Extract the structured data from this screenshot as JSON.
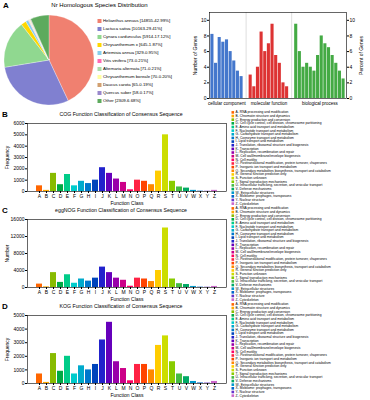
{
  "chart_data": [
    {
      "type": "pie",
      "title": "Nr Homologous Species Distribution",
      "annotations": [
        "A"
      ],
      "categories": [
        "Helianthus annuus [14855-42.99%]",
        "Lactuca sativa [10163-29.41%]",
        "Cynara cardunculus [5914-17.12%]",
        "Chrysanthemum x [645-1.87%]",
        "Artemisia annua [329-0.95%]",
        "Vitis vinifera [73-0.21%]",
        "Alternaria alternata [71-0.21%]",
        "Chrysanthemum boreale [70-0.20%]",
        "Daucus carota [65-0.19%]",
        "Quercus suber [58-0.17%]",
        "Other [2309-6.68%]"
      ],
      "values": [
        42.99,
        29.41,
        17.12,
        1.87,
        0.95,
        0.21,
        0.21,
        0.2,
        0.19,
        0.17,
        6.68
      ],
      "colors": [
        "#F08070",
        "#8080D0",
        "#90D890",
        "#FFD700",
        "#87CEEB",
        "#FF69B4",
        "#AADDAA",
        "#FFFFA0",
        "#D2A070",
        "#9988CC",
        "#5DAA5D"
      ],
      "legend": "right"
    },
    {
      "type": "bar",
      "title": "COG Function Classification of Consensus Sequence",
      "annotations": [
        "B"
      ],
      "xlabel": "Function Class",
      "ylabel": "Frequency",
      "categories": [
        "A",
        "B",
        "C",
        "D",
        "E",
        "F",
        "G",
        "H",
        "I",
        "J",
        "K",
        "L",
        "M",
        "N",
        "O",
        "P",
        "Q",
        "R",
        "S",
        "T",
        "U",
        "V",
        "W",
        "X",
        "Y",
        "Z"
      ],
      "values": [
        500,
        100,
        1600,
        600,
        1500,
        500,
        900,
        700,
        1000,
        2100,
        1600,
        1100,
        800,
        150,
        1000,
        900,
        600,
        1800,
        5000,
        900,
        400,
        300,
        100,
        30,
        20,
        100
      ],
      "colors": [
        "#FF6600",
        "#FFAA00",
        "#88BB00",
        "#00AA44",
        "#00CC88",
        "#00CCCC",
        "#00AACC",
        "#0077CC",
        "#0044BB",
        "#2222CC",
        "#6600BB",
        "#9900AA",
        "#CC0088",
        "#FF0066",
        "#FF2244",
        "#FF4400",
        "#FF8800",
        "#FFCC00",
        "#CCDD00",
        "#88CC00",
        "#44BB44",
        "#00AA66",
        "#0099CC",
        "#0066CC",
        "#6633CC",
        "#CC66CC"
      ],
      "ylim": [
        0,
        6000
      ],
      "yticks": [
        0,
        1000,
        2000,
        3000,
        4000,
        5000,
        6000
      ],
      "grid": false,
      "legend": "right",
      "legend_labels": [
        "A- RNA processing and modification",
        "B- Chromatin structure and dynamics",
        "C- Energy production and conversion",
        "D- Cell cycle control, cell division, chromosome partitioning",
        "E- Amino acid transport and metabolism",
        "F- Nucleotide transport and metabolism",
        "G- Carbohydrate transport and metabolism",
        "H- Coenzyme transport and metabolism",
        "I- Lipid transport and metabolism",
        "J- Translation, ribosomal structure and biogenesis",
        "K- Transcription",
        "L- Replication, recombination and repair",
        "M- Cell wall/membrane/envelope biogenesis",
        "N- Cell motility",
        "O- Posttranslational modification, protein turnover, chaperones",
        "P- Inorganic ion transport and metabolism",
        "Q- Secondary metabolites biosynthesis, transport and catabolism",
        "R- General function prediction only",
        "S- Function unknown",
        "T- Signal transduction mechanisms",
        "U- Intracellular trafficking, secretion, and vesicular transport",
        "V- Defense mechanisms",
        "W- Extracellular structures",
        "X- Mobilome: prophages, transposons",
        "Y- Nuclear structure",
        "Z- Cytoskeleton"
      ]
    },
    {
      "type": "bar",
      "title": "eggNOG Function Classification of Consensus Sequence",
      "annotations": [
        "C"
      ],
      "xlabel": "Function Class",
      "ylabel": "Number",
      "categories": [
        "A",
        "B",
        "C",
        "D",
        "E",
        "F",
        "G",
        "H",
        "I",
        "J",
        "K",
        "L",
        "M",
        "N",
        "O",
        "P",
        "Q",
        "R",
        "S",
        "T",
        "U",
        "V",
        "W",
        "X",
        "Y",
        "Z"
      ],
      "values": [
        800,
        150,
        3500,
        1200,
        3000,
        1000,
        2000,
        1500,
        2200,
        4800,
        3500,
        2200,
        1700,
        300,
        2200,
        2000,
        1400,
        4000,
        14000,
        2000,
        900,
        700,
        250,
        80,
        60,
        250
      ],
      "colors": [
        "#FF6600",
        "#FFAA00",
        "#88BB00",
        "#00AA44",
        "#00CC88",
        "#00CCCC",
        "#00AACC",
        "#0077CC",
        "#0044BB",
        "#2222CC",
        "#6600BB",
        "#9900AA",
        "#CC0088",
        "#FF0066",
        "#FF2244",
        "#FF4400",
        "#FF8800",
        "#FFCC00",
        "#CCDD00",
        "#88CC00",
        "#44BB44",
        "#00AA66",
        "#0099CC",
        "#0066CC",
        "#6633CC",
        "#CC66CC"
      ],
      "ylim": [
        0,
        16000
      ],
      "yticks": [
        0,
        4000,
        8000,
        12000,
        16000
      ],
      "grid": false,
      "legend": "right",
      "legend_labels": [
        "A- RNA processing and modification",
        "B- Chromatin structure and dynamics",
        "C- Energy production and conversion",
        "D- Cell cycle control, cell division, chromosome partitioning",
        "E- Amino acid transport and metabolism",
        "F- Nucleotide transport and metabolism",
        "G- Carbohydrate transport and metabolism",
        "H- Coenzyme transport and metabolism",
        "I- Lipid transport and metabolism",
        "J- Translation, ribosomal structure and biogenesis",
        "K- Transcription",
        "L- Replication, recombination and repair",
        "M- Cell wall/membrane/envelope biogenesis",
        "N- Cell motility",
        "O- Posttranslational modification, protein turnover, chaperones",
        "P- Inorganic ion transport and metabolism",
        "Q- Secondary metabolites biosynthesis, transport and catabolism",
        "R- General function prediction only",
        "S- Function unknown",
        "T- Signal transduction mechanisms",
        "U- Intracellular trafficking, secretion, and vesicular transport",
        "V- Defense mechanisms",
        "W- Extracellular structures",
        "X- Mobilome: prophages, transposons",
        "Y- Nuclear structure",
        "Z- Cytoskeleton"
      ]
    },
    {
      "type": "bar",
      "title": "KOG Function Classification of Consensus Sequence",
      "annotations": [
        "D"
      ],
      "xlabel": "Function Class",
      "ylabel": "Frequency",
      "categories": [
        "A",
        "B",
        "C",
        "D",
        "E",
        "F",
        "G",
        "H",
        "I",
        "J",
        "K",
        "L",
        "M",
        "N",
        "O",
        "P",
        "Q",
        "R",
        "S",
        "T",
        "U",
        "V",
        "W",
        "X",
        "Y",
        "Z"
      ],
      "values": [
        700,
        80,
        2200,
        900,
        2000,
        700,
        1300,
        1000,
        1400,
        3200,
        4500,
        1600,
        1100,
        200,
        1400,
        1400,
        1000,
        2800,
        3500,
        1600,
        700,
        500,
        150,
        40,
        30,
        150
      ],
      "colors": [
        "#FF6600",
        "#FFAA00",
        "#88BB00",
        "#00AA44",
        "#00CC88",
        "#00CCCC",
        "#00AACC",
        "#0077CC",
        "#0044BB",
        "#2222CC",
        "#6600BB",
        "#9900AA",
        "#CC0088",
        "#FF0066",
        "#FF2244",
        "#FF4400",
        "#FF8800",
        "#FFCC00",
        "#CCDD00",
        "#88CC00",
        "#44BB44",
        "#00AA66",
        "#0099CC",
        "#0066CC",
        "#6633CC",
        "#CC66CC"
      ],
      "ylim": [
        0,
        5000
      ],
      "yticks": [
        0,
        1000,
        2000,
        3000,
        4000,
        5000
      ],
      "grid": false,
      "legend": "right",
      "legend_labels": [
        "A- RNA processing and modification",
        "B- Chromatin structure and dynamics",
        "C- Energy production and conversion",
        "D- Cell cycle control, cell division, chromosome partitioning",
        "E- Amino acid transport and metabolism",
        "F- Nucleotide transport and metabolism",
        "G- Carbohydrate transport and metabolism",
        "H- Coenzyme transport and metabolism",
        "I- Lipid transport and metabolism",
        "J- Translation, ribosomal structure and biogenesis",
        "K- Transcription",
        "L- Replication, recombination and repair",
        "M- Cell wall/membrane/envelope biogenesis",
        "N- Cell motility",
        "O- Posttranslational modification, protein turnover, chaperones",
        "P- Inorganic ion transport and metabolism",
        "Q- Secondary metabolites biosynthesis, transport and catabolism",
        "R- General function prediction only",
        "S- Function unknown",
        "T- Signal transduction mechanisms",
        "U- Intracellular trafficking, secretion, and vesicular transport",
        "V- Defense mechanisms",
        "W- Extracellular structures",
        "X- Mobilome: prophages, transposons",
        "Y- Nuclear structure",
        "Z- Cytoskeleton"
      ]
    },
    {
      "type": "bar",
      "annotations": [
        "E"
      ],
      "ylabel": "Number of Genes",
      "y2label": "Percent of Genes",
      "categories": [
        null,
        null,
        null,
        null,
        null,
        null,
        null,
        null,
        null,
        null,
        null,
        null,
        null,
        null,
        null,
        null,
        null,
        null,
        null,
        null,
        null,
        null,
        null,
        null,
        null,
        null,
        null,
        null,
        null,
        null,
        null,
        null,
        null,
        null
      ],
      "series": [
        {
          "name": "cellular component",
          "color": "#4477CC",
          "values": [
            8.2,
            4.5,
            7.8,
            7.2,
            7.5,
            6.0,
            4.8,
            3.5,
            2.8,
            null,
            null,
            null,
            null,
            null,
            null,
            null,
            null,
            null,
            null,
            null,
            null,
            null,
            null,
            null,
            null,
            null,
            null,
            null,
            null,
            null,
            null,
            null,
            null,
            null
          ]
        },
        {
          "name": "molecular function",
          "color": "#DD3333",
          "values": [
            null,
            null,
            null,
            null,
            null,
            null,
            null,
            null,
            null,
            3.0,
            1.5,
            4.0,
            8.5,
            6.0,
            7.0,
            9.5,
            5.5,
            4.5,
            2.0,
            1.5,
            null,
            null,
            null,
            null,
            null,
            null,
            null,
            null,
            null,
            null,
            null,
            null,
            null,
            null
          ]
        },
        {
          "name": "biological process",
          "color": "#44AA44",
          "values": [
            null,
            null,
            null,
            null,
            null,
            null,
            null,
            null,
            null,
            null,
            null,
            null,
            null,
            null,
            null,
            null,
            null,
            null,
            null,
            null,
            9.5,
            6.0,
            4.0,
            4.5,
            4.0,
            3.5,
            5.5,
            8.0,
            7.0,
            6.5,
            5.5,
            4.5,
            3.5,
            2.5
          ]
        }
      ],
      "ylim": [
        0,
        11
      ],
      "yticks": [
        0,
        2,
        4,
        6,
        8,
        10
      ],
      "y2lim": [
        0,
        11
      ],
      "y2ticks": [
        0,
        2,
        4,
        6,
        8,
        10
      ],
      "tick_labels": "y",
      "grid": false
    }
  ]
}
